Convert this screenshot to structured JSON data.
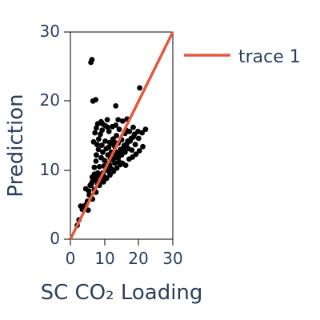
{
  "chart_data": {
    "type": "scatter",
    "title": "",
    "xlabel": "SC CO₂ Loading",
    "ylabel": "Prediction",
    "xlim": [
      0,
      30
    ],
    "ylim": [
      0,
      30
    ],
    "x_ticks": [
      "0",
      "10",
      "20",
      "30"
    ],
    "y_ticks": [
      "0",
      "10",
      "20",
      "30"
    ],
    "grid": false,
    "legend_position": "top-right",
    "colors": {
      "points": "#000000",
      "trace": "#e4583e",
      "text": "#2a3f5f"
    },
    "series": [
      {
        "mode": "markers",
        "points": [
          [
            2.0,
            2.0
          ],
          [
            2.5,
            2.8
          ],
          [
            3.0,
            4.8
          ],
          [
            3.5,
            4.3
          ],
          [
            4.0,
            4.8
          ],
          [
            4.5,
            7.3
          ],
          [
            5.0,
            5.5
          ],
          [
            5.2,
            4.2
          ],
          [
            5.5,
            6.4
          ],
          [
            6.0,
            6.3
          ],
          [
            6.0,
            7.8
          ],
          [
            6.5,
            5.8
          ],
          [
            6.5,
            8.4
          ],
          [
            7.0,
            7.2
          ],
          [
            7.0,
            9.4
          ],
          [
            7.5,
            6.8
          ],
          [
            7.5,
            11.3
          ],
          [
            8.0,
            8.0
          ],
          [
            8.0,
            9.6
          ],
          [
            8.5,
            7.8
          ],
          [
            8.5,
            10.5
          ],
          [
            9.0,
            8.7
          ],
          [
            9.0,
            11.8
          ],
          [
            9.5,
            9.6
          ],
          [
            9.5,
            12.6
          ],
          [
            10.0,
            9.0
          ],
          [
            10.0,
            11.4
          ],
          [
            10.5,
            10.2
          ],
          [
            10.5,
            13.1
          ],
          [
            11.0,
            9.9
          ],
          [
            11.0,
            12.2
          ],
          [
            11.5,
            10.8
          ],
          [
            11.5,
            14.0
          ],
          [
            12.0,
            10.2
          ],
          [
            12.0,
            12.6
          ],
          [
            12.5,
            11.5
          ],
          [
            12.5,
            14.5
          ],
          [
            13.0,
            11.0
          ],
          [
            13.0,
            13.4
          ],
          [
            13.5,
            12.1
          ],
          [
            13.5,
            15.0
          ],
          [
            14.0,
            11.7
          ],
          [
            14.0,
            13.9
          ],
          [
            14.5,
            12.8
          ],
          [
            15.0,
            12.2
          ],
          [
            15.0,
            14.4
          ],
          [
            15.5,
            13.2
          ],
          [
            16.0,
            12.6
          ],
          [
            16.0,
            15.3
          ],
          [
            16.5,
            13.8
          ],
          [
            17.0,
            13.1
          ],
          [
            17.5,
            14.2
          ],
          [
            18.0,
            12.9
          ],
          [
            18.5,
            14.8
          ],
          [
            19.0,
            13.7
          ],
          [
            20.0,
            14.6
          ],
          [
            21.0,
            15.4
          ],
          [
            22.0,
            15.9
          ],
          [
            7.8,
            13.7
          ],
          [
            8.3,
            14.5
          ],
          [
            8.8,
            15.2
          ],
          [
            9.3,
            15.8
          ],
          [
            10.3,
            16.4
          ],
          [
            11.3,
            15.6
          ],
          [
            12.3,
            16.3
          ],
          [
            13.3,
            16.5
          ],
          [
            14.3,
            15.9
          ],
          [
            15.3,
            17.1
          ],
          [
            16.3,
            15.8
          ],
          [
            17.3,
            15.6
          ],
          [
            7.2,
            15.4
          ],
          [
            6.8,
            14.1
          ],
          [
            8.0,
            16.7
          ],
          [
            9.0,
            17.0
          ],
          [
            10.8,
            17.3
          ],
          [
            12.8,
            14.1
          ],
          [
            5.8,
            7.8
          ],
          [
            6.4,
            9.0
          ],
          [
            7.0,
            10.4
          ],
          [
            7.6,
            12.2
          ],
          [
            8.2,
            13.0
          ],
          [
            9.2,
            13.6
          ],
          [
            10.2,
            14.2
          ],
          [
            11.2,
            13.3
          ],
          [
            12.2,
            13.8
          ],
          [
            13.2,
            12.6
          ],
          [
            14.2,
            11.2
          ],
          [
            15.2,
            11.0
          ],
          [
            16.2,
            10.7
          ],
          [
            17.2,
            11.6
          ],
          [
            18.2,
            11.9
          ],
          [
            19.2,
            12.3
          ],
          [
            20.2,
            12.8
          ],
          [
            21.2,
            13.4
          ],
          [
            4.6,
            5.0
          ],
          [
            5.4,
            7.0
          ],
          [
            6.2,
            8.1
          ],
          [
            7.4,
            8.9
          ],
          [
            8.6,
            9.3
          ],
          [
            9.8,
            10.6
          ],
          [
            10.9,
            10.9
          ],
          [
            11.7,
            11.6
          ],
          [
            12.9,
            12.0
          ],
          [
            13.8,
            12.4
          ],
          [
            14.7,
            13.0
          ],
          [
            15.8,
            13.6
          ],
          [
            16.8,
            14.2
          ],
          [
            17.8,
            14.6
          ],
          [
            18.8,
            15.2
          ],
          [
            19.8,
            15.6
          ],
          [
            7.8,
            8.4
          ],
          [
            8.9,
            8.5
          ],
          [
            9.7,
            8.3
          ],
          [
            10.6,
            8.8
          ],
          [
            11.6,
            9.3
          ],
          [
            12.6,
            9.8
          ],
          [
            13.6,
            10.3
          ],
          [
            14.6,
            10.8
          ],
          [
            6.6,
            20.0
          ],
          [
            7.4,
            20.2
          ],
          [
            6.0,
            25.6
          ],
          [
            6.3,
            26.0
          ],
          [
            13.3,
            19.3
          ],
          [
            20.3,
            21.9
          ],
          [
            14.0,
            17.3
          ],
          [
            10.9,
            16.2
          ],
          [
            9.4,
            16.7
          ],
          [
            7.6,
            16.1
          ],
          [
            16.6,
            17.4
          ],
          [
            18.4,
            16.2
          ]
        ]
      },
      {
        "name": "trace 1",
        "mode": "lines",
        "points": [
          [
            0,
            0
          ],
          [
            30,
            30
          ]
        ]
      }
    ]
  }
}
